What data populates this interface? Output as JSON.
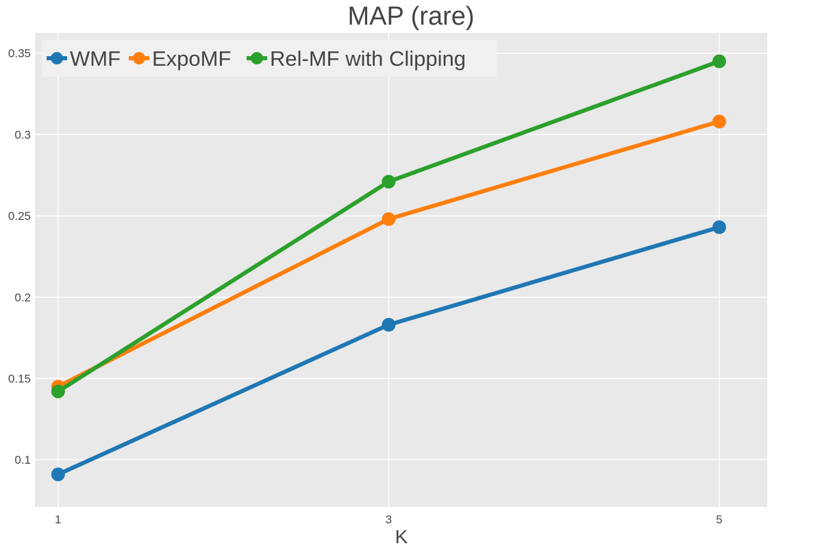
{
  "chart_data": {
    "type": "line",
    "title": "MAP (rare)",
    "xlabel": "K",
    "ylabel": "",
    "x": [
      1,
      3,
      5
    ],
    "x_tick_labels": [
      "1",
      "3",
      "5"
    ],
    "y_ticks": [
      0.1,
      0.15,
      0.2,
      0.25,
      0.3,
      0.35
    ],
    "y_tick_labels": [
      "0.1",
      "0.15",
      "0.2",
      "0.25",
      "0.3",
      "0.35"
    ],
    "xlim": [
      0.86,
      5.29
    ],
    "ylim": [
      0.071,
      0.3625
    ],
    "grid": true,
    "legend_position": "top-left",
    "series": [
      {
        "name": "WMF",
        "color": "#1f77b4",
        "values": [
          0.091,
          0.183,
          0.243
        ]
      },
      {
        "name": "ExpoMF",
        "color": "#ff7f0e",
        "values": [
          0.145,
          0.248,
          0.308
        ]
      },
      {
        "name": "Rel-MF with Clipping",
        "color": "#2ca02c",
        "values": [
          0.142,
          0.271,
          0.345
        ]
      }
    ]
  }
}
